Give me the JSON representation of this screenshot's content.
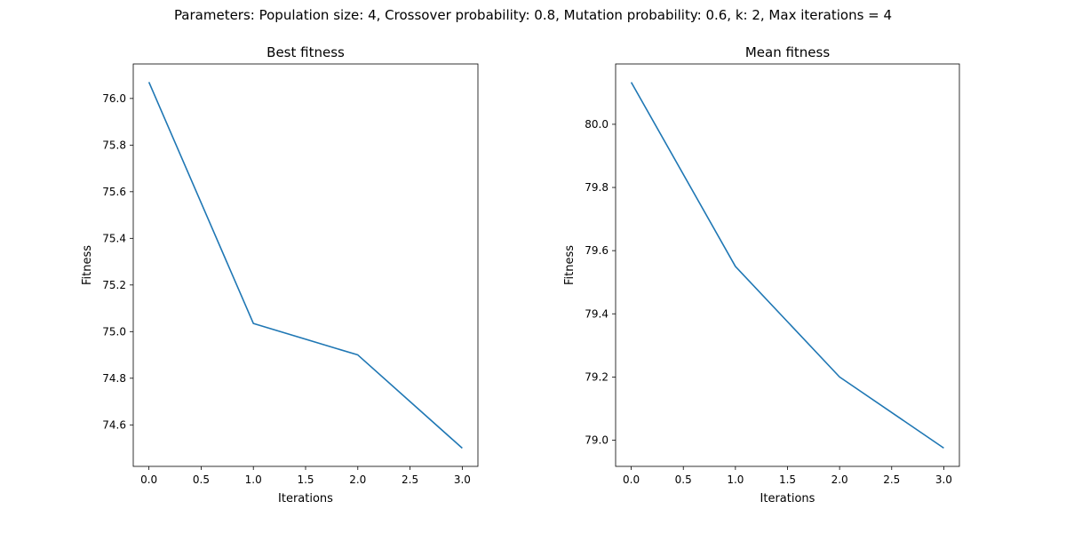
{
  "figure": {
    "suptitle": "Parameters: Population size: 4, Crossover probability: 0.8, Mutation probability: 0.6, k: 2, Max iterations = 4"
  },
  "chart_data": [
    {
      "type": "line",
      "title": "Best fitness",
      "xlabel": "Iterations",
      "ylabel": "Fitness",
      "x": [
        0,
        1,
        2,
        3
      ],
      "series": [
        {
          "values": [
            76.07,
            75.035,
            74.9,
            74.5
          ],
          "color": "#1f77b4"
        }
      ],
      "xlim": [
        -0.15,
        3.15
      ],
      "ylim": [
        74.422,
        76.148
      ],
      "xticks": [
        "0.0",
        "0.5",
        "1.0",
        "1.5",
        "2.0",
        "2.5",
        "3.0"
      ],
      "yticks": [
        "74.6",
        "74.8",
        "75.0",
        "75.2",
        "75.4",
        "75.6",
        "75.8",
        "76.0"
      ],
      "grid": false
    },
    {
      "type": "line",
      "title": "Mean fitness",
      "xlabel": "Iterations",
      "ylabel": "Fitness",
      "x": [
        0,
        1,
        2,
        3
      ],
      "series": [
        {
          "values": [
            80.133,
            79.55,
            79.2,
            78.975
          ],
          "color": "#1f77b4"
        }
      ],
      "xlim": [
        -0.15,
        3.15
      ],
      "ylim": [
        78.917,
        80.191
      ],
      "xticks": [
        "0.0",
        "0.5",
        "1.0",
        "1.5",
        "2.0",
        "2.5",
        "3.0"
      ],
      "yticks": [
        "79.0",
        "79.2",
        "79.4",
        "79.6",
        "79.8",
        "80.0"
      ],
      "grid": false
    }
  ]
}
